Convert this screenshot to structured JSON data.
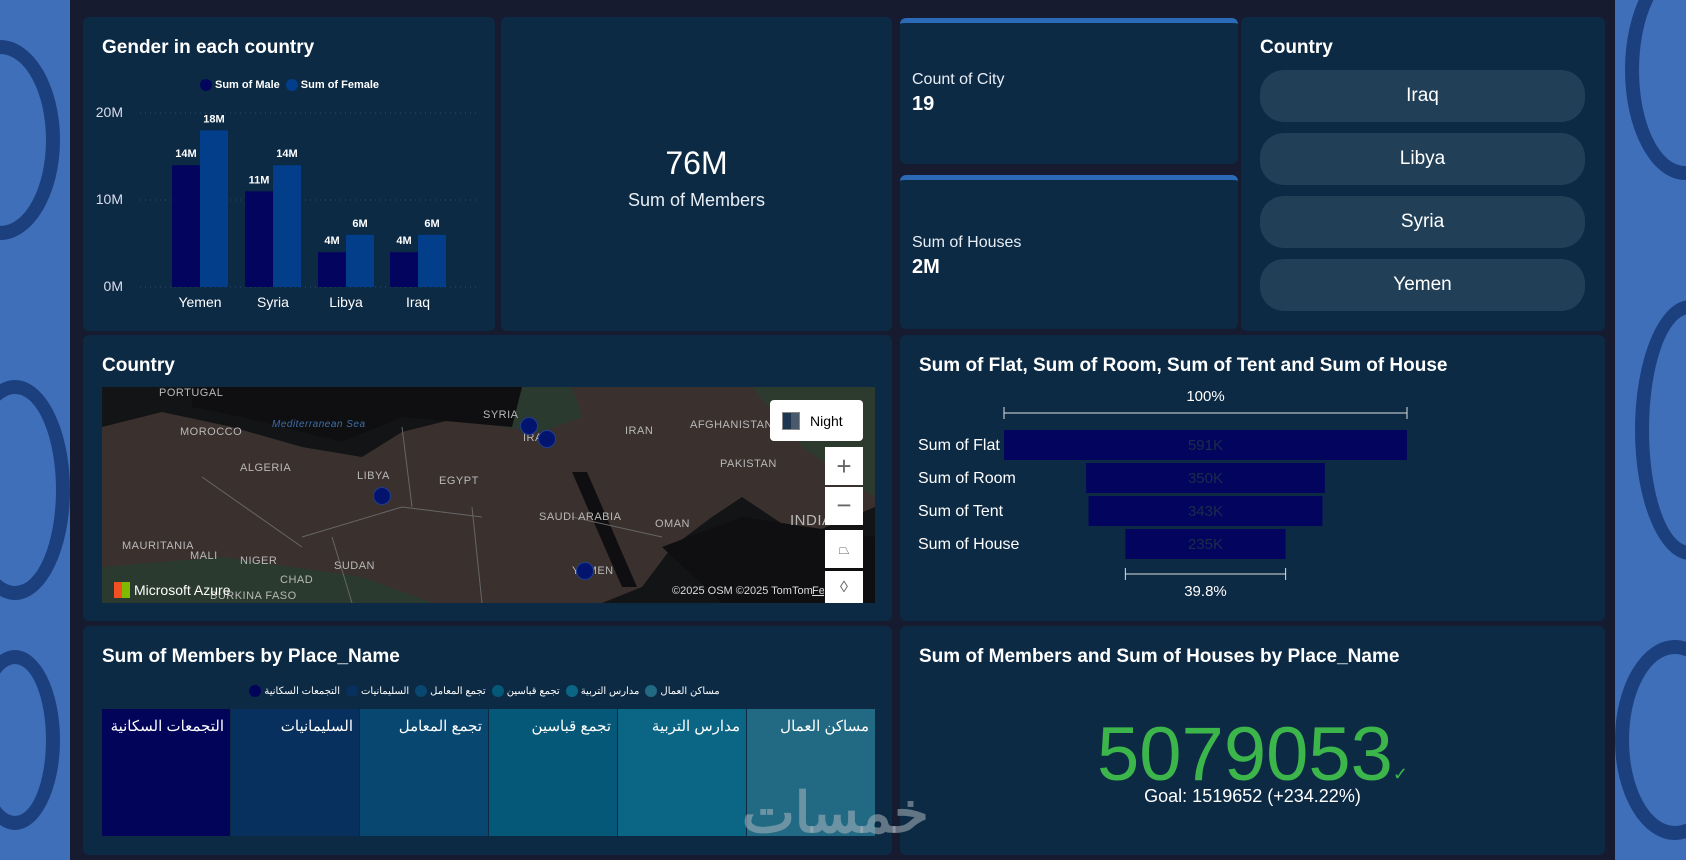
{
  "gender_chart": {
    "title": "Gender in each country",
    "legend": [
      "Sum of Male",
      "Sum of Female"
    ],
    "colors": [
      "#03045e",
      "#023e8a"
    ],
    "chart_data": {
      "type": "bar",
      "categories": [
        "Yemen",
        "Syria",
        "Libya",
        "Iraq"
      ],
      "series": [
        {
          "name": "Sum of Male",
          "values": [
            14,
            11,
            4,
            4
          ],
          "labels": [
            "14M",
            "11M",
            "4M",
            "4M"
          ]
        },
        {
          "name": "Sum of Female",
          "values": [
            18,
            14,
            6,
            6
          ],
          "labels": [
            "18M",
            "14M",
            "6M",
            "6M"
          ]
        }
      ],
      "yticks": [
        "20M",
        "10M",
        "0M"
      ],
      "ylim": [
        0,
        20
      ],
      "unit": "M"
    }
  },
  "members_card": {
    "value": "76M",
    "label": "Sum of Members"
  },
  "city_card": {
    "label": "Count of City",
    "value": "19"
  },
  "houses_card": {
    "label": "Sum of Houses",
    "value": "2M"
  },
  "country_slicer": {
    "title": "Country",
    "items": [
      "Iraq",
      "Libya",
      "Syria",
      "Yemen"
    ]
  },
  "map": {
    "title": "Country",
    "style_button": "Night",
    "zoom_in": "+",
    "zoom_out": "−",
    "brand": "Microsoft Azure",
    "copyright": "©2025 OSM  ©2025 TomTom",
    "feedback": "Feedback",
    "labels": [
      "PORTUGAL",
      "MOROCCO",
      "ALGERIA",
      "LIBYA",
      "EGYPT",
      "SYRIA",
      "IRAQ",
      "IRAN",
      "AFGHANISTAN",
      "PAKISTAN",
      "SAUDI ARABIA",
      "OMAN",
      "YEMEN",
      "MAURITANIA",
      "MALI",
      "NIGER",
      "CHAD",
      "SUDAN",
      "INDIA",
      "BURKINA FASO",
      "Mediterranean Sea"
    ]
  },
  "funnel": {
    "title": "Sum of Flat, Sum of Room, Sum of Tent and Sum of House",
    "top_pct": "100%",
    "bottom_pct": "39.8%",
    "chart_data": {
      "type": "bar",
      "categories": [
        "Sum of Flat",
        "Sum of Room",
        "Sum of Tent",
        "Sum of House"
      ],
      "values": [
        591,
        350,
        343,
        235
      ],
      "labels": [
        "591K",
        "350K",
        "343K",
        "235K"
      ],
      "unit": "K"
    }
  },
  "treemap": {
    "title": "Sum of Members by Place_Name",
    "items": [
      {
        "name": "التجمعات السكانية",
        "color": "#02045a"
      },
      {
        "name": "السليمانيات",
        "color": "#07305e"
      },
      {
        "name": "تجمع المعامل",
        "color": "#074770"
      },
      {
        "name": "تجمع قباسين",
        "color": "#065879"
      },
      {
        "name": "مدارس التربية",
        "color": "#0a6684"
      },
      {
        "name": "مساكن العمال",
        "color": "#226a83"
      }
    ]
  },
  "kpi": {
    "title": "Sum of Members and Sum of Houses by Place_Name",
    "value": "5079053",
    "goal": "Goal: 1519652 (+234.22%)",
    "color": "#3cb54a"
  },
  "watermark": "خمسات"
}
